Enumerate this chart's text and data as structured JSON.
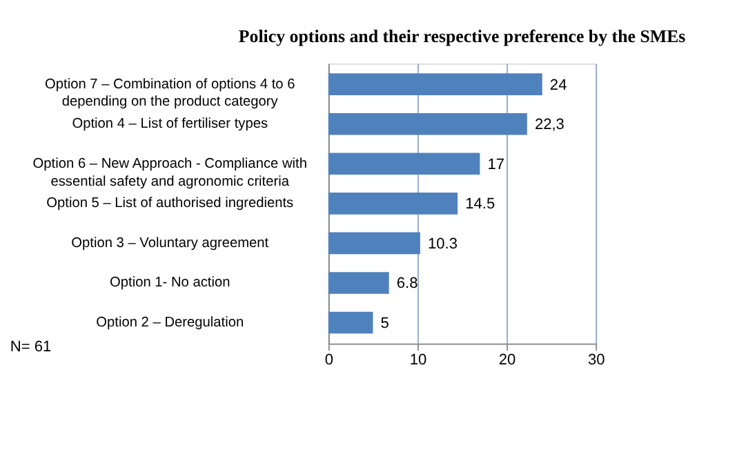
{
  "chart_data": {
    "type": "bar",
    "orientation": "horizontal",
    "title": "Policy options and their respective preference by the SMEs",
    "categories": [
      "Option 7 – Combination of options 4 to  6\ndepending on the product category",
      "Option 4 – List of fertiliser types",
      "Option 6 – New Approach - Compliance with\nessential safety and agronomic criteria",
      "Option 5 – List of authorised ingredients",
      "Option 3 – Voluntary agreement",
      "Option 1- No action",
      "Option 2 – Deregulation"
    ],
    "values": [
      24,
      22.3,
      17,
      14.5,
      10.3,
      6.8,
      5
    ],
    "value_labels": [
      "24",
      "22,3",
      "17",
      "14.5",
      "10.3",
      "6.8",
      "5"
    ],
    "color": "#4f81bd",
    "xlim": [
      0,
      30
    ],
    "xticks": [
      0,
      10,
      20,
      30
    ],
    "grid": "x",
    "annotations": [
      "N= 61"
    ]
  }
}
